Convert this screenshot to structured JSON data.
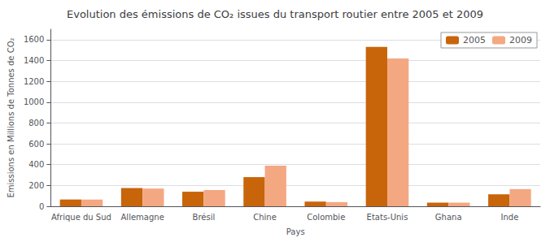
{
  "chart_data": {
    "type": "bar",
    "title": "Evolution des émissions de CO₂ issues du transport routier entre 2005 et 2009",
    "xlabel": "Pays",
    "ylabel": "Emissions en Millions de Tonnes de CO₂",
    "categories": [
      "Afrique du Sud",
      "Allemagne",
      "Brésil",
      "Chine",
      "Colombie",
      "Etats-Unis",
      "Ghana",
      "Inde"
    ],
    "series": [
      {
        "name": "2005",
        "color": "#C8650A",
        "values": [
          65,
          175,
          140,
          280,
          45,
          1530,
          35,
          115
        ]
      },
      {
        "name": "2009",
        "color": "#F4A882",
        "values": [
          65,
          170,
          155,
          390,
          40,
          1420,
          35,
          165
        ]
      }
    ],
    "ylim": [
      0,
      1700
    ],
    "yticks": [
      0,
      200,
      400,
      600,
      800,
      1000,
      1200,
      1400,
      1600
    ],
    "grid": true,
    "legend": "upper right"
  }
}
